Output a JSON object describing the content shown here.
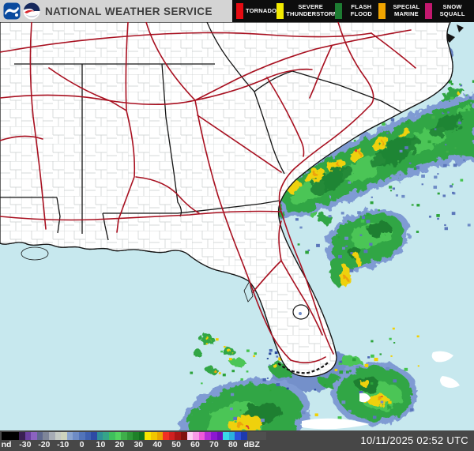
{
  "header": {
    "title": "NATIONAL WEATHER SERVICE",
    "logos": [
      {
        "name": "nws-logo"
      },
      {
        "name": "noaa-logo"
      }
    ],
    "warnings": [
      {
        "label": "TORNADO",
        "color": "#e50b12"
      },
      {
        "label": "SEVERE THUNDERSTORM",
        "color": "#f2ea00"
      },
      {
        "label": "FLASH FLOOD",
        "color": "#1d7c32"
      },
      {
        "label": "SPECIAL MARINE",
        "color": "#f0a400"
      },
      {
        "label": "SNOW SQUALL",
        "color": "#c2186e"
      }
    ]
  },
  "map": {
    "water_color": "#c7e8ee",
    "land_color": "#ffffff",
    "county_line_color": "#c9cdcd",
    "state_border_color": "#141414",
    "highway_color": "#a81020",
    "echo_colors": {
      "light_precip_blue": "#5b76ba",
      "light_precip_blue_pale": "#8ea6d6",
      "moderate_green": "#2ca33a",
      "bright_green": "#45c34e",
      "dark_green": "#157a28",
      "heavy_yellow": "#f2d000",
      "intense_orange": "#f0a000",
      "extreme_red": "#e03020",
      "mixed_gray": "#cfcfc6",
      "snow_speck_cyan": "#62cfe0"
    }
  },
  "colorbar": {
    "unit": "dBZ",
    "ticks": [
      "nd",
      "-30",
      "-20",
      "-10",
      "0",
      "10",
      "20",
      "30",
      "40",
      "50",
      "60",
      "70",
      "80",
      "dBZ"
    ],
    "colors": [
      "#000000",
      "#3a1f52",
      "#6b3fa0",
      "#8b63c0",
      "#5e688e",
      "#7e8598",
      "#a6abb5",
      "#c4c9c4",
      "#cdd3bd",
      "#8aa4cf",
      "#6e8cc6",
      "#5274ba",
      "#3e60b0",
      "#2e4aa4",
      "#2f8f98",
      "#35a489",
      "#3fbe5d",
      "#52d25f",
      "#3fae4a",
      "#2e9738",
      "#1f8129",
      "#12701e",
      "#f7e400",
      "#f1c500",
      "#e8a400",
      "#f03024",
      "#d02020",
      "#a81616",
      "#801010",
      "#fccdf2",
      "#f89ae8",
      "#ee5ada",
      "#b52ed8",
      "#8c17d0",
      "#6e0fb9",
      "#38d8ea",
      "#2ab0dc",
      "#2b50da",
      "#1d3aae",
      "#4f4f4f"
    ]
  },
  "footer": {
    "timestamp": "10/11/2025 02:52 UTC"
  }
}
